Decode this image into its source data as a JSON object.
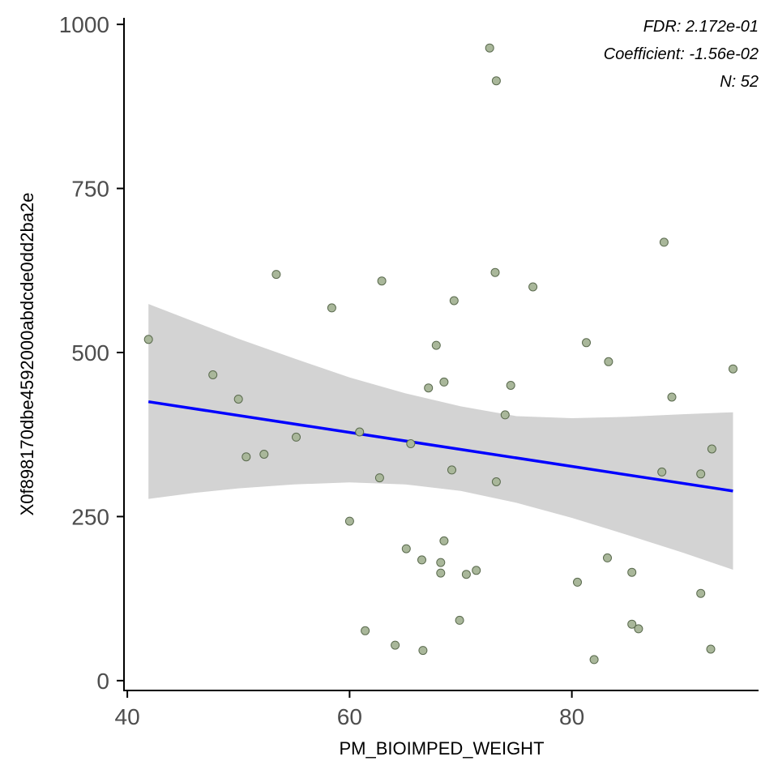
{
  "chart_data": {
    "type": "scatter",
    "title": "",
    "xlabel": "PM_BIOIMPED_WEIGHT",
    "ylabel": "X0f898170dbe4592000abdcde0dd2ba2e",
    "xlim": [
      39.7,
      96.8
    ],
    "ylim": [
      -15,
      1010
    ],
    "x_ticks": [
      40,
      60,
      80
    ],
    "y_ticks": [
      0,
      250,
      500,
      750,
      1000
    ],
    "grid": false,
    "annotations": [
      "FDR: 2.172e-01",
      "Coefficient: -1.56e-02",
      "N: 52"
    ],
    "colors": {
      "point_fill": "#a9b79a",
      "point_stroke": "#5a6a4e",
      "trend_line": "#0000ff",
      "confidence_band": "#d3d3d3"
    },
    "points": [
      {
        "x": 41.9,
        "y": 520
      },
      {
        "x": 47.7,
        "y": 466
      },
      {
        "x": 50.0,
        "y": 429
      },
      {
        "x": 50.7,
        "y": 341
      },
      {
        "x": 52.3,
        "y": 345
      },
      {
        "x": 53.4,
        "y": 619
      },
      {
        "x": 55.2,
        "y": 371
      },
      {
        "x": 58.4,
        "y": 568
      },
      {
        "x": 60.0,
        "y": 243
      },
      {
        "x": 60.9,
        "y": 379
      },
      {
        "x": 61.4,
        "y": 76
      },
      {
        "x": 62.7,
        "y": 309
      },
      {
        "x": 62.9,
        "y": 609
      },
      {
        "x": 64.1,
        "y": 54
      },
      {
        "x": 65.1,
        "y": 201
      },
      {
        "x": 65.5,
        "y": 361
      },
      {
        "x": 66.5,
        "y": 184
      },
      {
        "x": 66.6,
        "y": 46
      },
      {
        "x": 67.1,
        "y": 446
      },
      {
        "x": 67.8,
        "y": 511
      },
      {
        "x": 68.2,
        "y": 180
      },
      {
        "x": 68.2,
        "y": 164
      },
      {
        "x": 68.5,
        "y": 455
      },
      {
        "x": 68.5,
        "y": 213
      },
      {
        "x": 69.2,
        "y": 321
      },
      {
        "x": 69.4,
        "y": 579
      },
      {
        "x": 69.9,
        "y": 92
      },
      {
        "x": 70.5,
        "y": 162
      },
      {
        "x": 71.4,
        "y": 168
      },
      {
        "x": 72.6,
        "y": 964
      },
      {
        "x": 73.1,
        "y": 622
      },
      {
        "x": 73.2,
        "y": 914
      },
      {
        "x": 73.2,
        "y": 303
      },
      {
        "x": 74.0,
        "y": 405
      },
      {
        "x": 74.5,
        "y": 450
      },
      {
        "x": 76.5,
        "y": 600
      },
      {
        "x": 80.5,
        "y": 150
      },
      {
        "x": 81.3,
        "y": 515
      },
      {
        "x": 82.0,
        "y": 32
      },
      {
        "x": 83.2,
        "y": 187
      },
      {
        "x": 83.3,
        "y": 486
      },
      {
        "x": 85.4,
        "y": 165
      },
      {
        "x": 85.4,
        "y": 86
      },
      {
        "x": 86.0,
        "y": 79
      },
      {
        "x": 88.1,
        "y": 318
      },
      {
        "x": 88.3,
        "y": 668
      },
      {
        "x": 89.0,
        "y": 432
      },
      {
        "x": 91.6,
        "y": 315
      },
      {
        "x": 91.6,
        "y": 133
      },
      {
        "x": 92.5,
        "y": 48
      },
      {
        "x": 92.6,
        "y": 353
      },
      {
        "x": 94.5,
        "y": 475
      }
    ],
    "trend_line": {
      "x": [
        41.9,
        94.5
      ],
      "y": [
        425,
        289
      ]
    },
    "confidence_band": {
      "x": [
        41.9,
        46,
        50,
        55,
        60,
        65,
        70,
        75,
        80,
        85,
        90,
        94.5
      ],
      "lower": [
        277,
        286,
        293,
        299,
        302,
        299,
        289,
        271,
        248,
        222,
        195,
        169
      ],
      "upper": [
        574,
        547,
        521,
        491,
        462,
        438,
        418,
        403,
        400,
        402,
        406,
        409
      ]
    }
  }
}
